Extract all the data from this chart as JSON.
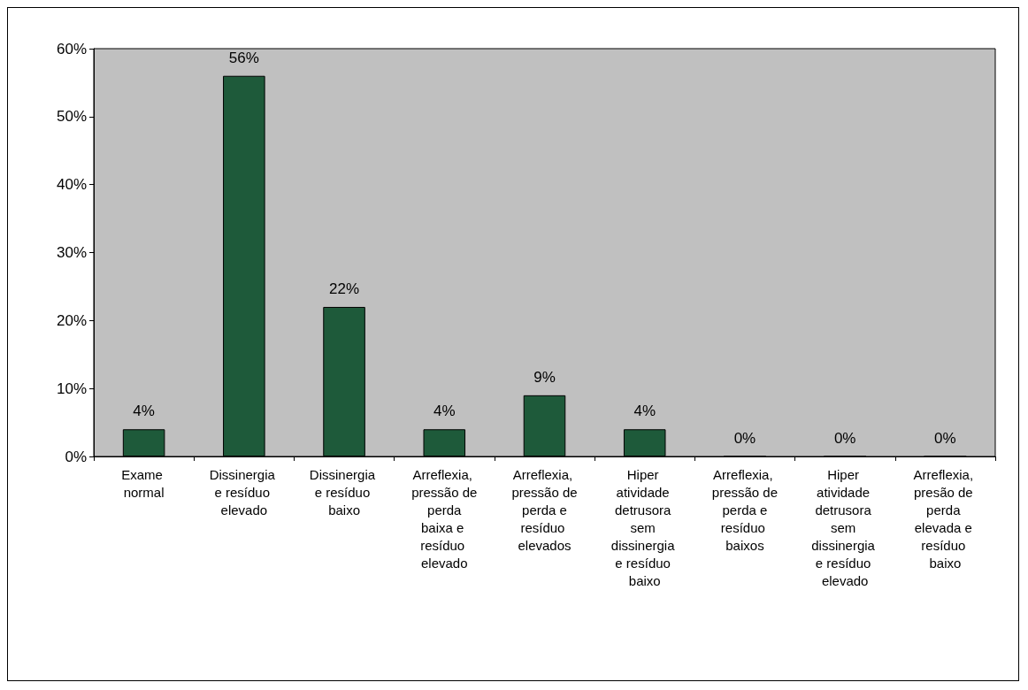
{
  "chart_data": {
    "type": "bar",
    "categories": [
      "Exame normal",
      "Dissinergia e resíduo elevado",
      "Dissinergia e resíduo baixo",
      "Arreflexia, pressão de perda baixa e resíduo elevado",
      "Arreflexia, pressão de perda e resíduo elevados",
      "Hiper atividade detrusora sem dissinergia e resíduo baixo",
      "Arreflexia, pressão de perda e resíduo baixos",
      "Hiper atividade detrusora sem dissinergia e resíduo elevado",
      "Arreflexia, presão de perda elevada e resíduo baixo"
    ],
    "values": [
      4,
      56,
      22,
      4,
      9,
      4,
      0,
      0,
      0
    ],
    "value_labels": [
      "4%",
      "56%",
      "22%",
      "4%",
      "9%",
      "4%",
      "0%",
      "0%",
      "0%"
    ],
    "color": "#1e5a3a",
    "ylim": [
      0,
      60
    ],
    "yticks": [
      {
        "value": 0,
        "label": "0%"
      },
      {
        "value": 10,
        "label": "10%"
      },
      {
        "value": 20,
        "label": "20%"
      },
      {
        "value": 30,
        "label": "30%"
      },
      {
        "value": 40,
        "label": "40%"
      },
      {
        "value": 50,
        "label": "50%"
      },
      {
        "value": 60,
        "label": "60%"
      }
    ]
  }
}
